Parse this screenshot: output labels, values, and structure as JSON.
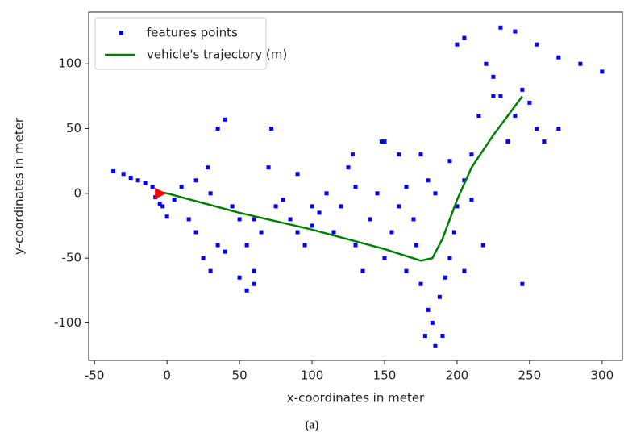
{
  "chart_data": {
    "type": "scatter",
    "caption": "(a)",
    "x_label": "x-coordinates in meter",
    "y_label": "y-coordinates in meter",
    "xlim": [
      -54,
      314
    ],
    "ylim": [
      -129,
      140
    ],
    "xticks": [
      -50,
      0,
      50,
      100,
      150,
      200,
      250,
      300
    ],
    "yticks": [
      -100,
      -50,
      0,
      50,
      100
    ],
    "legend": "upper left",
    "series": [
      {
        "name": "features points",
        "type": "scatter",
        "color": "#0000ff",
        "x": [
          -37,
          -30,
          -25,
          -20,
          -15,
          -10,
          -8,
          -3,
          0,
          5,
          10,
          20,
          25,
          30,
          35,
          30,
          28,
          35,
          40,
          45,
          50,
          55,
          60,
          50,
          55,
          60,
          65,
          70,
          72,
          75,
          80,
          85,
          90,
          95,
          100,
          105,
          110,
          115,
          120,
          125,
          128,
          130,
          135,
          140,
          145,
          148,
          150,
          155,
          160,
          165,
          170,
          172,
          175,
          178,
          180,
          183,
          188,
          192,
          195,
          198,
          200,
          205,
          210,
          215,
          220,
          225,
          230,
          235,
          240,
          245,
          250,
          255,
          260,
          270,
          245,
          230,
          240,
          255,
          270,
          285,
          300,
          225,
          218,
          205,
          210,
          185,
          190,
          165,
          160,
          150,
          180,
          185,
          195,
          200,
          205,
          175,
          130,
          100,
          90,
          60,
          40,
          -5,
          15,
          20
        ],
        "y": [
          17,
          15,
          12,
          10,
          8,
          5,
          -3,
          -10,
          -18,
          -5,
          5,
          -30,
          -50,
          -60,
          -40,
          0,
          20,
          50,
          57,
          -10,
          -20,
          -40,
          -20,
          -65,
          -75,
          -60,
          -30,
          20,
          50,
          -10,
          -5,
          -20,
          -30,
          -40,
          -25,
          -15,
          0,
          -30,
          -10,
          20,
          30,
          -40,
          -60,
          -20,
          0,
          40,
          -50,
          -30,
          -10,
          5,
          -20,
          -40,
          -70,
          -110,
          -90,
          -100,
          -80,
          -65,
          -50,
          -30,
          -10,
          10,
          30,
          60,
          100,
          90,
          75,
          40,
          60,
          80,
          70,
          50,
          40,
          50,
          -70,
          128,
          125,
          115,
          105,
          100,
          94,
          75,
          -40,
          -60,
          -5,
          -118,
          -110,
          -60,
          30,
          40,
          10,
          0,
          25,
          115,
          120,
          30,
          5,
          -10,
          15,
          -70,
          -45,
          -8,
          -20,
          10
        ]
      },
      {
        "name": "vehicle's trajectory (m)",
        "type": "line",
        "color": "#008000",
        "x": [
          -5,
          0,
          50,
          100,
          150,
          175,
          183,
          190,
          200,
          210,
          225,
          245
        ],
        "y": [
          1,
          0,
          -15,
          -28,
          -43,
          -52,
          -50,
          -35,
          -5,
          20,
          45,
          75
        ]
      }
    ],
    "start_point": {
      "x": -5,
      "y": 0,
      "color": "#ff0000"
    }
  }
}
